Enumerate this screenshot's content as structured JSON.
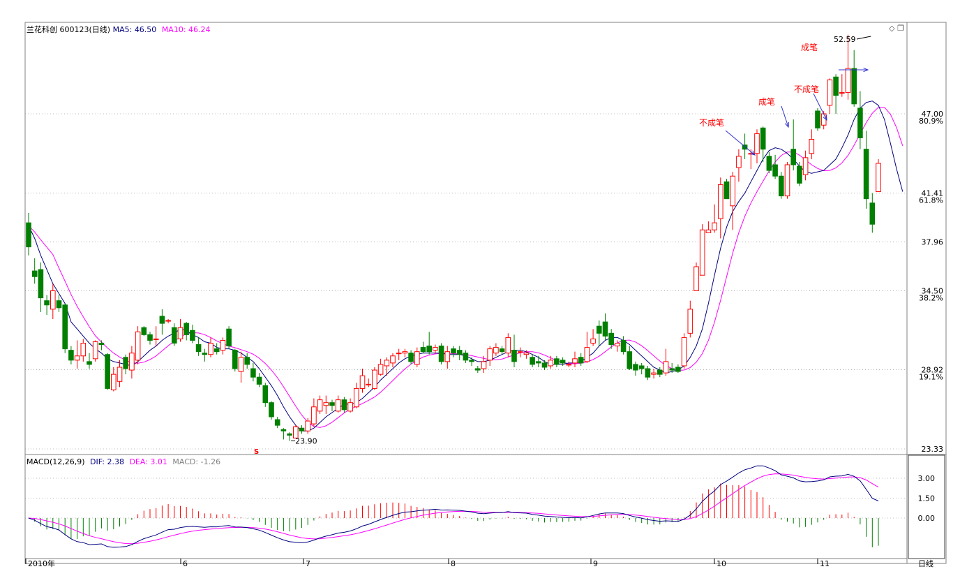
{
  "header": {
    "title": "兰花科创 600123(日线)",
    "ma5_label": "MA5:",
    "ma5_value": "46.50",
    "ma10_label": "MA10:",
    "ma10_value": "46.24",
    "icon_diamond": "diamond-icon",
    "icon_restore": "restore-window-icon"
  },
  "macd_header": {
    "name": "MACD(12,26,9)",
    "dif_label": "DIF:",
    "dif_value": "2.38",
    "dea_label": "DEA:",
    "dea_value": "3.01",
    "macd_label": "MACD:",
    "macd_value": "-1.26"
  },
  "colors": {
    "up": "#ff0000",
    "down": "#007f00",
    "ma5": "#00007f",
    "ma10": "#ff00ff",
    "grid": "#808080",
    "annotation": "#ff0000",
    "arrow": "#3030d0"
  },
  "period_label": "日线",
  "chart_data": [
    {
      "type": "candlestick",
      "title": "兰花科创 600123(日线)",
      "price_ticks": [
        "47.00",
        "41.41",
        "37.96",
        "34.50",
        "28.92",
        "23.33"
      ],
      "pct_ticks": [
        "80.9%",
        "61.8%",
        "38.2%",
        "19.1%"
      ],
      "ylim": [
        23.33,
        53.5
      ],
      "x_labels": [
        "2010年",
        "6",
        "7",
        "8",
        "9",
        "10",
        "11"
      ],
      "high_label": "52.59",
      "low_label": "23.90",
      "signal_mark": "S",
      "annotations": [
        "不成笔",
        "成笔",
        "不成笔",
        "成笔"
      ],
      "series_names": [
        "MA5",
        "MA10"
      ],
      "candles": [
        [
          39.3,
          37.6,
          40.0,
          37.0
        ],
        [
          35.9,
          35.5,
          36.8,
          35.0
        ],
        [
          36.0,
          34.0,
          36.5,
          33.0
        ],
        [
          33.8,
          33.5,
          34.2,
          32.8
        ],
        [
          33.2,
          34.5,
          35.0,
          32.5
        ],
        [
          33.8,
          33.3,
          34.2,
          33.0
        ],
        [
          33.5,
          30.4,
          33.6,
          30.1
        ],
        [
          30.3,
          29.6,
          30.6,
          29.3
        ],
        [
          29.6,
          29.9,
          31.0,
          29.0
        ],
        [
          29.9,
          30.8,
          31.1,
          29.5
        ],
        [
          29.5,
          29.3,
          30.1,
          29.0
        ],
        [
          29.7,
          30.9,
          31.0,
          29.5
        ],
        [
          30.8,
          30.7,
          31.0,
          30.3
        ],
        [
          30.0,
          27.6,
          30.1,
          27.5
        ],
        [
          27.5,
          28.6,
          29.1,
          27.4
        ],
        [
          28.1,
          29.1,
          29.6,
          27.7
        ],
        [
          29.8,
          29.0,
          30.0,
          28.6
        ],
        [
          28.9,
          30.1,
          30.6,
          28.3
        ],
        [
          29.6,
          31.6,
          32.0,
          29.3
        ],
        [
          31.9,
          31.4,
          32.0,
          31.3
        ],
        [
          31.4,
          31.0,
          31.6,
          30.7
        ],
        [
          31.1,
          31.1,
          32.0,
          30.6
        ],
        [
          32.7,
          32.2,
          33.2,
          31.4
        ],
        [
          32.4,
          32.4,
          32.5,
          32.2
        ],
        [
          31.9,
          30.8,
          32.2,
          30.6
        ],
        [
          31.1,
          31.9,
          32.5,
          30.9
        ],
        [
          32.2,
          31.4,
          32.3,
          31.0
        ],
        [
          31.7,
          31.0,
          32.1,
          30.8
        ],
        [
          30.7,
          30.2,
          31.2,
          29.9
        ],
        [
          30.1,
          30.0,
          30.4,
          29.5
        ],
        [
          30.0,
          30.8,
          31.2,
          29.8
        ],
        [
          30.4,
          30.2,
          30.8,
          30.0
        ],
        [
          30.3,
          31.0,
          31.2,
          30.0
        ],
        [
          31.8,
          30.6,
          32.0,
          30.4
        ],
        [
          30.3,
          29.0,
          30.4,
          28.8
        ],
        [
          28.8,
          29.8,
          30.2,
          28.0
        ],
        [
          29.8,
          29.3,
          30.1,
          29.0
        ],
        [
          29.0,
          28.4,
          29.4,
          28.1
        ],
        [
          28.4,
          27.9,
          28.7,
          27.7
        ],
        [
          27.8,
          26.6,
          28.0,
          26.3
        ],
        [
          26.6,
          25.6,
          26.7,
          25.4
        ],
        [
          25.4,
          25.0,
          25.6,
          24.8
        ],
        [
          24.7,
          24.6,
          24.8,
          24.0
        ],
        [
          24.4,
          24.3,
          24.5,
          23.9
        ],
        [
          24.1,
          24.9,
          25.0,
          24.1
        ],
        [
          24.8,
          24.6,
          25.0,
          24.4
        ],
        [
          24.6,
          25.3,
          25.5,
          24.4
        ],
        [
          25.1,
          26.3,
          26.9,
          24.9
        ],
        [
          26.0,
          26.8,
          27.1,
          25.8
        ],
        [
          26.4,
          26.6,
          27.1,
          25.8
        ],
        [
          26.6,
          26.4,
          26.8,
          26.0
        ],
        [
          26.0,
          26.8,
          27.1,
          25.9
        ],
        [
          26.8,
          26.1,
          27.0,
          25.9
        ],
        [
          26.0,
          26.6,
          26.9,
          25.9
        ],
        [
          26.3,
          27.6,
          28.0,
          26.2
        ],
        [
          27.6,
          28.5,
          29.0,
          27.3
        ],
        [
          27.9,
          27.9,
          28.3,
          27.7
        ],
        [
          27.6,
          28.9,
          29.1,
          27.5
        ],
        [
          28.6,
          29.3,
          29.7,
          28.5
        ],
        [
          29.2,
          29.6,
          29.8,
          28.5
        ],
        [
          29.4,
          29.9,
          30.1,
          29.1
        ],
        [
          30.1,
          30.1,
          30.4,
          29.6
        ],
        [
          30.1,
          30.2,
          30.4,
          29.8
        ],
        [
          30.1,
          29.5,
          30.3,
          29.3
        ],
        [
          29.3,
          30.2,
          30.5,
          29.1
        ],
        [
          30.5,
          30.2,
          30.9,
          30.1
        ],
        [
          30.6,
          30.2,
          31.6,
          30.0
        ],
        [
          30.3,
          30.5,
          30.7,
          30.1
        ],
        [
          30.6,
          29.5,
          30.8,
          29.3
        ],
        [
          29.5,
          30.2,
          30.6,
          29.0
        ],
        [
          30.4,
          30.1,
          30.6,
          29.8
        ],
        [
          30.3,
          30.0,
          30.6,
          29.6
        ],
        [
          30.1,
          29.6,
          30.3,
          29.4
        ],
        [
          29.6,
          29.5,
          29.8,
          29.2
        ],
        [
          29.0,
          28.9,
          29.2,
          28.7
        ],
        [
          29.0,
          29.5,
          29.9,
          28.7
        ],
        [
          29.6,
          30.4,
          30.6,
          29.2
        ],
        [
          30.1,
          30.5,
          30.8,
          29.9
        ],
        [
          30.4,
          30.2,
          30.6,
          30.0
        ],
        [
          30.1,
          31.2,
          31.5,
          29.8
        ],
        [
          30.3,
          29.5,
          31.4,
          29.1
        ],
        [
          30.2,
          30.2,
          30.5,
          29.8
        ],
        [
          30.0,
          30.1,
          30.3,
          29.7
        ],
        [
          29.8,
          29.3,
          30.0,
          29.1
        ],
        [
          29.5,
          29.4,
          29.9,
          29.1
        ],
        [
          29.4,
          29.1,
          29.6,
          28.9
        ],
        [
          29.2,
          29.6,
          29.9,
          29.0
        ],
        [
          29.7,
          29.3,
          29.9,
          29.1
        ],
        [
          29.6,
          29.4,
          29.8,
          29.2
        ],
        [
          29.3,
          29.3,
          29.5,
          29.1
        ],
        [
          29.4,
          29.7,
          30.2,
          29.1
        ],
        [
          29.8,
          29.4,
          30.1,
          29.2
        ],
        [
          29.5,
          30.5,
          31.6,
          29.4
        ],
        [
          30.8,
          31.1,
          31.8,
          30.6
        ],
        [
          32.0,
          31.5,
          32.4,
          30.6
        ],
        [
          32.3,
          31.3,
          32.9,
          31.0
        ],
        [
          31.5,
          30.7,
          31.8,
          30.4
        ],
        [
          30.6,
          30.8,
          31.0,
          30.2
        ],
        [
          31.0,
          30.2,
          31.3,
          30.0
        ],
        [
          30.2,
          29.0,
          30.6,
          28.9
        ],
        [
          29.3,
          28.9,
          29.5,
          28.5
        ],
        [
          29.2,
          29.0,
          29.4,
          28.6
        ],
        [
          29.0,
          28.4,
          29.2,
          28.2
        ],
        [
          28.6,
          28.7,
          29.0,
          28.3
        ],
        [
          28.9,
          28.6,
          29.1,
          28.4
        ],
        [
          28.7,
          29.5,
          30.4,
          28.5
        ],
        [
          29.0,
          28.9,
          29.4,
          28.7
        ],
        [
          29.1,
          28.8,
          29.3,
          28.7
        ],
        [
          29.2,
          31.2,
          31.5,
          29.0
        ],
        [
          31.5,
          33.2,
          33.8,
          31.2
        ],
        [
          34.5,
          36.2,
          36.5,
          34.5
        ],
        [
          35.6,
          38.8,
          39.2,
          35.6
        ],
        [
          38.6,
          38.8,
          39.4,
          38.6
        ],
        [
          38.8,
          39.3,
          40.6,
          38.6
        ],
        [
          39.6,
          42.0,
          42.5,
          38.2
        ],
        [
          42.2,
          41.0,
          42.4,
          41.0
        ],
        [
          40.5,
          42.6,
          42.9,
          38.8
        ],
        [
          43.2,
          44.0,
          44.5,
          42.2
        ],
        [
          44.8,
          44.5,
          45.6,
          43.8
        ],
        [
          44.2,
          44.2,
          44.5,
          43.1
        ],
        [
          44.2,
          45.6,
          45.9,
          43.5
        ],
        [
          46.0,
          44.5,
          46.1,
          43.6
        ],
        [
          44.0,
          43.0,
          44.3,
          42.8
        ],
        [
          43.4,
          42.6,
          44.1,
          42.4
        ],
        [
          42.6,
          41.2,
          42.9,
          41.0
        ],
        [
          41.2,
          43.4,
          43.6,
          41.0
        ],
        [
          44.5,
          43.4,
          46.6,
          43.0
        ],
        [
          43.3,
          42.1,
          43.6,
          41.9
        ],
        [
          42.7,
          43.9,
          44.4,
          42.3
        ],
        [
          44.2,
          45.2,
          45.9,
          43.8
        ],
        [
          47.2,
          46.0,
          47.4,
          45.8
        ],
        [
          46.2,
          47.0,
          47.2,
          45.9
        ],
        [
          47.6,
          49.4,
          49.5,
          47.0
        ],
        [
          49.6,
          48.3,
          49.8,
          47.0
        ],
        [
          48.5,
          48.5,
          49.8,
          48.2
        ],
        [
          48.5,
          50.2,
          52.59,
          48.0
        ],
        [
          50.2,
          47.7,
          51.5,
          47.5
        ],
        [
          47.4,
          45.3,
          48.6,
          44.5
        ],
        [
          44.5,
          41.0,
          45.8,
          40.3
        ],
        [
          40.7,
          39.2,
          41.4,
          38.6
        ],
        [
          41.5,
          43.5,
          43.8,
          41.5
        ]
      ],
      "ma5": [
        39.1,
        38.2,
        37.0,
        36.0,
        35.0,
        34.3,
        33.6,
        32.3,
        31.8,
        31.3,
        30.8,
        30.4,
        30.1,
        29.7,
        29.5,
        29.4,
        29.3,
        29.2,
        29.5,
        29.9,
        30.3,
        30.6,
        31.0,
        31.3,
        31.5,
        31.8,
        31.7,
        31.4,
        31.2,
        30.9,
        30.8,
        30.5,
        30.4,
        30.4,
        30.3,
        30.1,
        29.8,
        29.5,
        29.0,
        28.4,
        27.8,
        27.1,
        26.3,
        25.6,
        25.0,
        24.6,
        24.6,
        24.8,
        25.2,
        25.6,
        25.9,
        26.2,
        26.5,
        26.5,
        26.6,
        26.9,
        27.3,
        27.7,
        28.2,
        28.6,
        29.0,
        29.4,
        29.7,
        29.9,
        30.0,
        30.1,
        30.1,
        30.1,
        30.1,
        30.0,
        30.0,
        30.0,
        29.9,
        29.7,
        29.5,
        29.5,
        29.6,
        29.8,
        30.0,
        30.2,
        30.3,
        30.3,
        30.2,
        30.0,
        29.8,
        29.5,
        29.3,
        29.3,
        29.3,
        29.4,
        29.4,
        29.5,
        29.8,
        30.1,
        30.6,
        31.0,
        31.2,
        31.2,
        31.0,
        30.7,
        30.3,
        29.9,
        29.5,
        29.1,
        28.9,
        28.7,
        28.8,
        28.9,
        29.2,
        29.8,
        30.6,
        31.8,
        33.6,
        35.6,
        37.5,
        39.0,
        40.1,
        40.8,
        41.4,
        42.2,
        43.0,
        43.8,
        44.4,
        44.6,
        44.5,
        44.2,
        43.8,
        43.3,
        42.9,
        42.8,
        42.9,
        43.0,
        43.4,
        43.8,
        44.6,
        45.5,
        46.6,
        47.4,
        47.8,
        47.9,
        47.6,
        46.6,
        44.9,
        43.1,
        41.5
      ]
    },
    {
      "type": "bar",
      "title": "MACD(12,26,9)",
      "ticks": [
        "3.00",
        "1.50",
        "0.00"
      ],
      "ylim": [
        -2.8,
        4.6
      ],
      "x_labels": [
        "2010年",
        "6",
        "7",
        "8",
        "9",
        "10",
        "11"
      ],
      "series_names": [
        "DIF",
        "DEA",
        "MACD"
      ],
      "period_label": "日线"
    }
  ]
}
